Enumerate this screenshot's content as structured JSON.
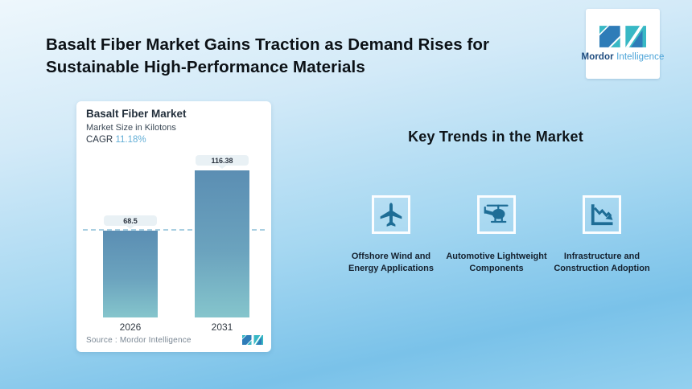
{
  "page": {
    "title": "Basalt Fiber Market Gains Traction as Demand Rises for Sustainable High-Performance Materials"
  },
  "brand": {
    "name_bold": "Mordor",
    "name_light": "Intelligence"
  },
  "chart_card": {
    "title": "Basalt Fiber Market",
    "subtitle": "Market Size in Kilotons",
    "cagr_label": "CAGR",
    "cagr_value": "11.18%",
    "source": "Source :  Mordor Intelligence"
  },
  "chart_data": {
    "type": "bar",
    "title": "Basalt Fiber Market",
    "ylabel": "Market Size in Kilotons",
    "categories": [
      "2026",
      "2031"
    ],
    "values": [
      68.5,
      116.38
    ],
    "cagr_percent": 11.18,
    "reference_line": 68.5,
    "ylim": [
      0,
      130
    ],
    "grid": false,
    "legend": false,
    "bar_color_top": "#5b8eb3",
    "bar_color_bottom": "#85c5cc"
  },
  "key_trends": {
    "heading": "Key Trends in the Market",
    "items": [
      {
        "icon": "airplane-icon",
        "label": "Offshore Wind and Energy Applications"
      },
      {
        "icon": "helicopter-icon",
        "label": "Automotive Lightweight Components"
      },
      {
        "icon": "declining-chart-icon",
        "label": "Infrastructure and Construction Adoption"
      }
    ]
  },
  "colors": {
    "brand_blue": "#2e7cb8",
    "brand_teal": "#38b8c5",
    "cagr_value_color": "#62aed6",
    "icon_glyph": "#1e6d96",
    "reference_line_color": "#a9cfe1"
  }
}
